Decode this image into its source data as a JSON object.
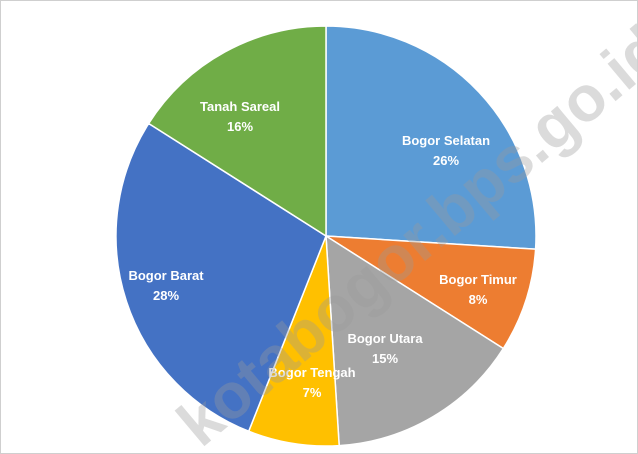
{
  "chart_data": {
    "type": "pie",
    "start_angle_deg": 0,
    "direction": "clockwise",
    "slices": [
      {
        "label": "Bogor Selatan",
        "value": 26,
        "value_label": "26%",
        "color": "#5b9bd5"
      },
      {
        "label": "Bogor Timur",
        "value": 8,
        "value_label": "8%",
        "color": "#ed7d31"
      },
      {
        "label": "Bogor Utara",
        "value": 15,
        "value_label": "15%",
        "color": "#a5a5a5"
      },
      {
        "label": "Bogor Tengah",
        "value": 7,
        "value_label": "7%",
        "color": "#ffc000"
      },
      {
        "label": "Bogor Barat",
        "value": 28,
        "value_label": "28%",
        "color": "#4472c4"
      },
      {
        "label": "Tanah Sareal",
        "value": 16,
        "value_label": "16%",
        "color": "#70ad47"
      }
    ]
  },
  "watermark": "kotabogor.bps.go.id"
}
